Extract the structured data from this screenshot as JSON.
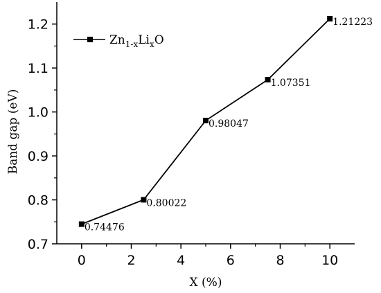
{
  "chart_data": {
    "type": "line",
    "xlabel": "X (%)",
    "ylabel": "Band gap (eV)",
    "xlim": [
      -1,
      11
    ],
    "ylim": [
      0.7,
      1.25
    ],
    "xticks": [
      "0",
      "2",
      "4",
      "6",
      "8",
      "10"
    ],
    "yticks": [
      "0.7",
      "0.8",
      "0.9",
      "1.0",
      "1.1",
      "1.2"
    ],
    "grid": false,
    "legend_position": "top-left",
    "legend": {
      "base1": "Zn",
      "sub1": "1-x",
      "base2": "Li",
      "sub2": "x",
      "base3": "O"
    },
    "series": [
      {
        "name": "Zn1-xLixO",
        "color": "#000000",
        "marker": "square",
        "x": [
          0,
          2.5,
          5,
          7.5,
          10
        ],
        "y": [
          0.74476,
          0.80022,
          0.98047,
          1.07351,
          1.21223
        ],
        "labels": [
          "0.74476",
          "0.80022",
          "0.98047",
          "1.07351",
          "1.21223"
        ]
      }
    ]
  }
}
